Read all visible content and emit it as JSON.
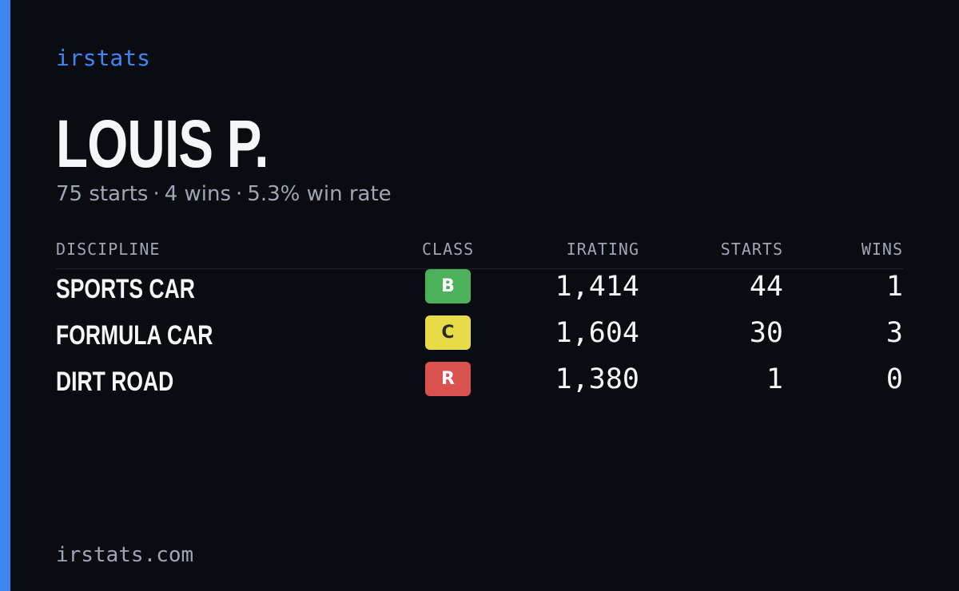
{
  "brand": "irstats",
  "driver": {
    "name": "LOUIS P.",
    "summary": {
      "starts": "75 starts",
      "wins": "4 wins",
      "win_rate": "5.3% win rate",
      "separator": "·"
    }
  },
  "table": {
    "headers": {
      "discipline": "DISCIPLINE",
      "class": "CLASS",
      "irating": "IRATING",
      "starts": "STARTS",
      "wins": "WINS"
    },
    "rows": [
      {
        "discipline": "SPORTS CAR",
        "class": "B",
        "class_color": "#4cb15a",
        "class_text_color": "#ffffff",
        "irating": "1,414",
        "starts": "44",
        "wins": "1"
      },
      {
        "discipline": "FORMULA CAR",
        "class": "C",
        "class_color": "#e7dc48",
        "class_text_color": "#2b2b2b",
        "irating": "1,604",
        "starts": "30",
        "wins": "3"
      },
      {
        "discipline": "DIRT ROAD",
        "class": "R",
        "class_color": "#d9524d",
        "class_text_color": "#ffffff",
        "irating": "1,380",
        "starts": "1",
        "wins": "0"
      }
    ]
  },
  "footer": {
    "url": "irstats.com"
  },
  "colors": {
    "background": "#0a0c12",
    "accent": "#3f86f5",
    "text_primary": "#f5f6f8",
    "text_muted": "#9ea6b4"
  }
}
